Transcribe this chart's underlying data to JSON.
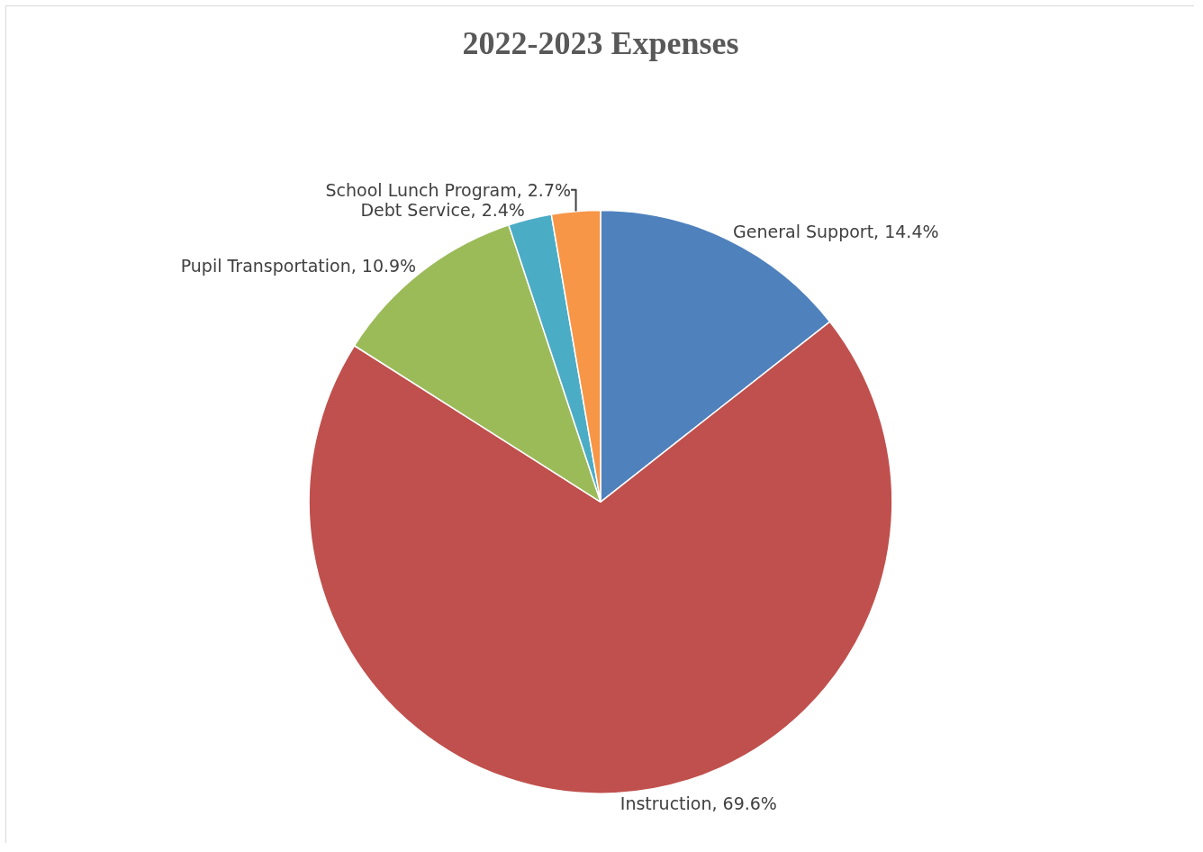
{
  "chart_data": {
    "type": "pie",
    "title": "2022-2023 Expenses",
    "categories": [
      "General Support",
      "Instruction",
      "Pupil Transportation",
      "Debt Service",
      "School Lunch Program"
    ],
    "values": [
      14.4,
      69.6,
      10.9,
      2.4,
      2.7
    ],
    "value_labels": [
      "14.4%",
      "69.6%",
      "10.9%",
      "2.4%",
      "2.7%"
    ],
    "colors": [
      "#4f81bd",
      "#c0504d",
      "#9bbb59",
      "#4bacc6",
      "#f79646"
    ],
    "legend": false
  }
}
